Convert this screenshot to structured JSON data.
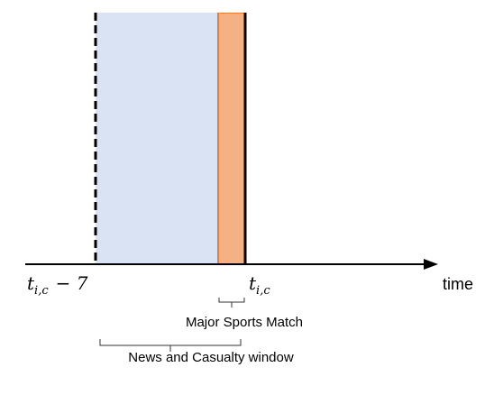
{
  "axis": {
    "label": "time"
  },
  "ticks": {
    "left_base": "t",
    "left_subscript": "i,c",
    "left_suffix": "− 7",
    "right_base": "t",
    "right_subscript": "i,c"
  },
  "braces": {
    "sports": {
      "label": "Major Sports Match"
    },
    "news": {
      "label": "News and Casualty window"
    }
  },
  "colors": {
    "window_fill": "#dae3f3",
    "sports_fill": "#f4b183",
    "sports_edge": "#ed7d31",
    "line": "#000000"
  }
}
